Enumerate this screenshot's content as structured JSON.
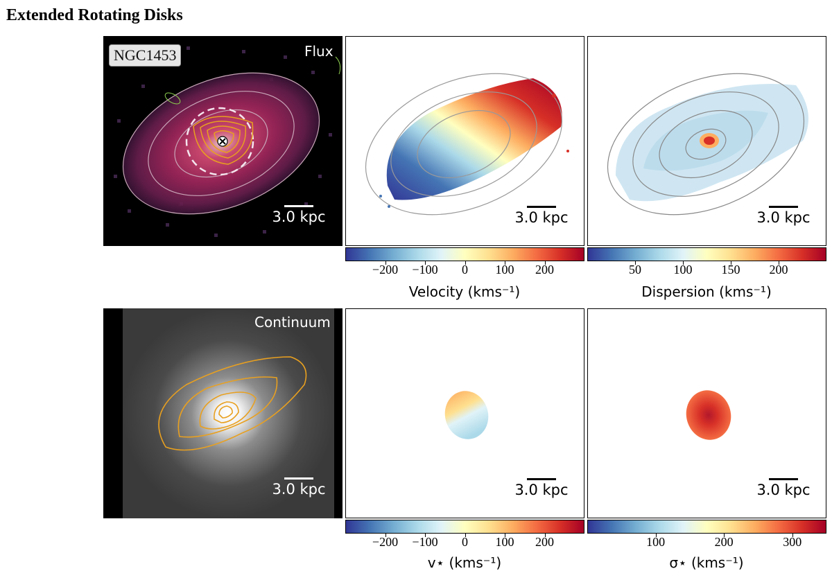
{
  "figure_title": "Extended Rotating Disks",
  "galaxy_name": "NGC1453",
  "panels": {
    "flux": {
      "label": "Flux",
      "scale": "3.0 kpc"
    },
    "velocity": {
      "scale": "3.0 kpc"
    },
    "dispersion": {
      "scale": "3.0 kpc"
    },
    "continuum": {
      "label": "Continuum",
      "scale": "3.0 kpc"
    },
    "stellar_velocity": {
      "scale": "3.0 kpc"
    },
    "stellar_dispersion": {
      "scale": "3.0 kpc"
    }
  },
  "colorbars": {
    "velocity": {
      "label": "Velocity (kms⁻¹)",
      "ticks": [
        "−200",
        "−100",
        "0",
        "100",
        "200"
      ],
      "tick_values": [
        -200,
        -100,
        0,
        100,
        200
      ],
      "range": [
        -300,
        300
      ]
    },
    "dispersion": {
      "label": "Dispersion (kms⁻¹)",
      "ticks": [
        "50",
        "100",
        "150",
        "200"
      ],
      "tick_values": [
        50,
        100,
        150,
        200
      ],
      "range": [
        0,
        250
      ]
    },
    "stellar_velocity": {
      "label": "v⋆ (kms⁻¹)",
      "ticks": [
        "−200",
        "−100",
        "0",
        "100",
        "200"
      ],
      "tick_values": [
        -200,
        -100,
        0,
        100,
        200
      ],
      "range": [
        -300,
        300
      ]
    },
    "stellar_dispersion": {
      "label": "σ⋆ (kms⁻¹)",
      "ticks": [
        "100",
        "200",
        "300"
      ],
      "tick_values": [
        100,
        200,
        300
      ],
      "range": [
        0,
        350
      ]
    }
  },
  "colors": {
    "velocity_map": [
      "#313695",
      "#4575b4",
      "#74add1",
      "#abd9e9",
      "#e0f3f8",
      "#ffffbf",
      "#fee090",
      "#fdae61",
      "#f46d43",
      "#d73027",
      "#a50026"
    ],
    "contour_orange": "#e8a020",
    "flux_magenta": "#b8336a"
  }
}
